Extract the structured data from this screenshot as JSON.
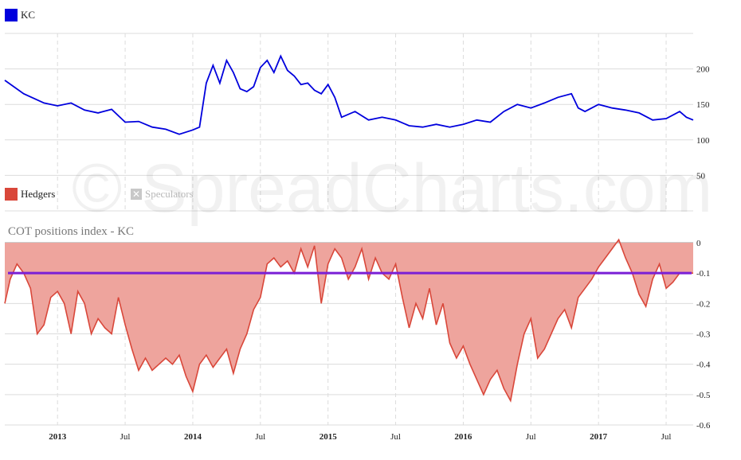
{
  "watermark": "© SpreadCharts.com",
  "colors": {
    "price": "#0000dd",
    "hedgers_line": "#d9473a",
    "hedgers_fill": "#eea49d",
    "mean_line": "#7a1fd6",
    "grid": "#dcdcdc"
  },
  "chart_data": [
    {
      "type": "line",
      "legend": [
        {
          "label": "KC",
          "color": "#0000dd"
        }
      ],
      "x_ticks": [
        "2013",
        "Jul",
        "2014",
        "Jul",
        "2015",
        "Jul",
        "2016",
        "Jul",
        "2017",
        "Jul"
      ],
      "y_ticks": [
        50,
        100,
        150,
        200
      ],
      "ylim": [
        0,
        250
      ],
      "series": [
        {
          "name": "KC",
          "x": [
            2012.61,
            2012.75,
            2012.9,
            2013.0,
            2013.1,
            2013.2,
            2013.3,
            2013.4,
            2013.5,
            2013.6,
            2013.7,
            2013.8,
            2013.9,
            2014.0,
            2014.05,
            2014.1,
            2014.15,
            2014.2,
            2014.25,
            2014.3,
            2014.35,
            2014.4,
            2014.45,
            2014.5,
            2014.55,
            2014.6,
            2014.65,
            2014.7,
            2014.75,
            2014.8,
            2014.85,
            2014.9,
            2014.95,
            2015.0,
            2015.05,
            2015.1,
            2015.2,
            2015.3,
            2015.4,
            2015.5,
            2015.6,
            2015.7,
            2015.8,
            2015.9,
            2016.0,
            2016.1,
            2016.2,
            2016.3,
            2016.4,
            2016.5,
            2016.6,
            2016.7,
            2016.8,
            2016.85,
            2016.9,
            2017.0,
            2017.1,
            2017.2,
            2017.3,
            2017.4,
            2017.5,
            2017.6,
            2017.65,
            2017.7
          ],
          "y": [
            184,
            165,
            152,
            148,
            152,
            142,
            138,
            143,
            125,
            126,
            118,
            115,
            108,
            114,
            118,
            180,
            205,
            180,
            212,
            195,
            172,
            168,
            175,
            202,
            212,
            195,
            218,
            198,
            190,
            178,
            180,
            170,
            165,
            178,
            160,
            132,
            140,
            128,
            132,
            128,
            120,
            118,
            122,
            118,
            122,
            128,
            125,
            140,
            150,
            145,
            152,
            160,
            165,
            145,
            140,
            150,
            145,
            142,
            138,
            128,
            130,
            140,
            132,
            128
          ]
        }
      ]
    },
    {
      "type": "area",
      "title": "COT positions index - KC",
      "legend": [
        {
          "label": "Hedgers",
          "color": "#d9473a",
          "enabled": true
        },
        {
          "label": "Speculators",
          "color": "#b8b8b8",
          "enabled": false
        }
      ],
      "y_ticks": [
        0,
        -0.1,
        -0.2,
        -0.3,
        -0.4,
        -0.5,
        -0.6
      ],
      "ylim": [
        -0.6,
        0
      ],
      "reference_line": -0.1,
      "series": [
        {
          "name": "Hedgers",
          "x": [
            2012.61,
            2012.65,
            2012.7,
            2012.75,
            2012.8,
            2012.85,
            2012.9,
            2012.95,
            2013.0,
            2013.05,
            2013.1,
            2013.15,
            2013.2,
            2013.25,
            2013.3,
            2013.35,
            2013.4,
            2013.45,
            2013.5,
            2013.55,
            2013.6,
            2013.65,
            2013.7,
            2013.75,
            2013.8,
            2013.85,
            2013.9,
            2013.95,
            2014.0,
            2014.05,
            2014.1,
            2014.15,
            2014.2,
            2014.25,
            2014.3,
            2014.35,
            2014.4,
            2014.45,
            2014.5,
            2014.55,
            2014.6,
            2014.65,
            2014.7,
            2014.75,
            2014.8,
            2014.85,
            2014.9,
            2014.95,
            2015.0,
            2015.05,
            2015.1,
            2015.15,
            2015.2,
            2015.25,
            2015.3,
            2015.35,
            2015.4,
            2015.45,
            2015.5,
            2015.55,
            2015.6,
            2015.65,
            2015.7,
            2015.75,
            2015.8,
            2015.85,
            2015.9,
            2015.95,
            2016.0,
            2016.05,
            2016.1,
            2016.15,
            2016.2,
            2016.25,
            2016.3,
            2016.35,
            2016.4,
            2016.45,
            2016.5,
            2016.55,
            2016.6,
            2016.65,
            2016.7,
            2016.75,
            2016.8,
            2016.85,
            2016.9,
            2016.95,
            2017.0,
            2017.05,
            2017.1,
            2017.15,
            2017.2,
            2017.25,
            2017.3,
            2017.35,
            2017.4,
            2017.45,
            2017.5,
            2017.55,
            2017.6,
            2017.65,
            2017.7
          ],
          "y": [
            -0.2,
            -0.12,
            -0.07,
            -0.1,
            -0.15,
            -0.3,
            -0.27,
            -0.18,
            -0.16,
            -0.2,
            -0.3,
            -0.16,
            -0.2,
            -0.3,
            -0.25,
            -0.28,
            -0.3,
            -0.18,
            -0.27,
            -0.35,
            -0.42,
            -0.38,
            -0.42,
            -0.4,
            -0.38,
            -0.4,
            -0.37,
            -0.44,
            -0.49,
            -0.4,
            -0.37,
            -0.41,
            -0.38,
            -0.35,
            -0.43,
            -0.35,
            -0.3,
            -0.22,
            -0.18,
            -0.07,
            -0.05,
            -0.08,
            -0.06,
            -0.1,
            -0.02,
            -0.08,
            -0.01,
            -0.2,
            -0.07,
            -0.02,
            -0.05,
            -0.12,
            -0.08,
            -0.02,
            -0.12,
            -0.05,
            -0.1,
            -0.12,
            -0.07,
            -0.18,
            -0.28,
            -0.2,
            -0.25,
            -0.15,
            -0.27,
            -0.2,
            -0.33,
            -0.38,
            -0.34,
            -0.4,
            -0.45,
            -0.5,
            -0.45,
            -0.42,
            -0.48,
            -0.52,
            -0.4,
            -0.3,
            -0.25,
            -0.38,
            -0.35,
            -0.3,
            -0.25,
            -0.22,
            -0.28,
            -0.18,
            -0.15,
            -0.12,
            -0.08,
            -0.05,
            -0.02,
            0.01,
            -0.05,
            -0.1,
            -0.17,
            -0.21,
            -0.12,
            -0.07,
            -0.15,
            -0.13,
            -0.1,
            -0.1,
            -0.1
          ]
        }
      ]
    }
  ]
}
